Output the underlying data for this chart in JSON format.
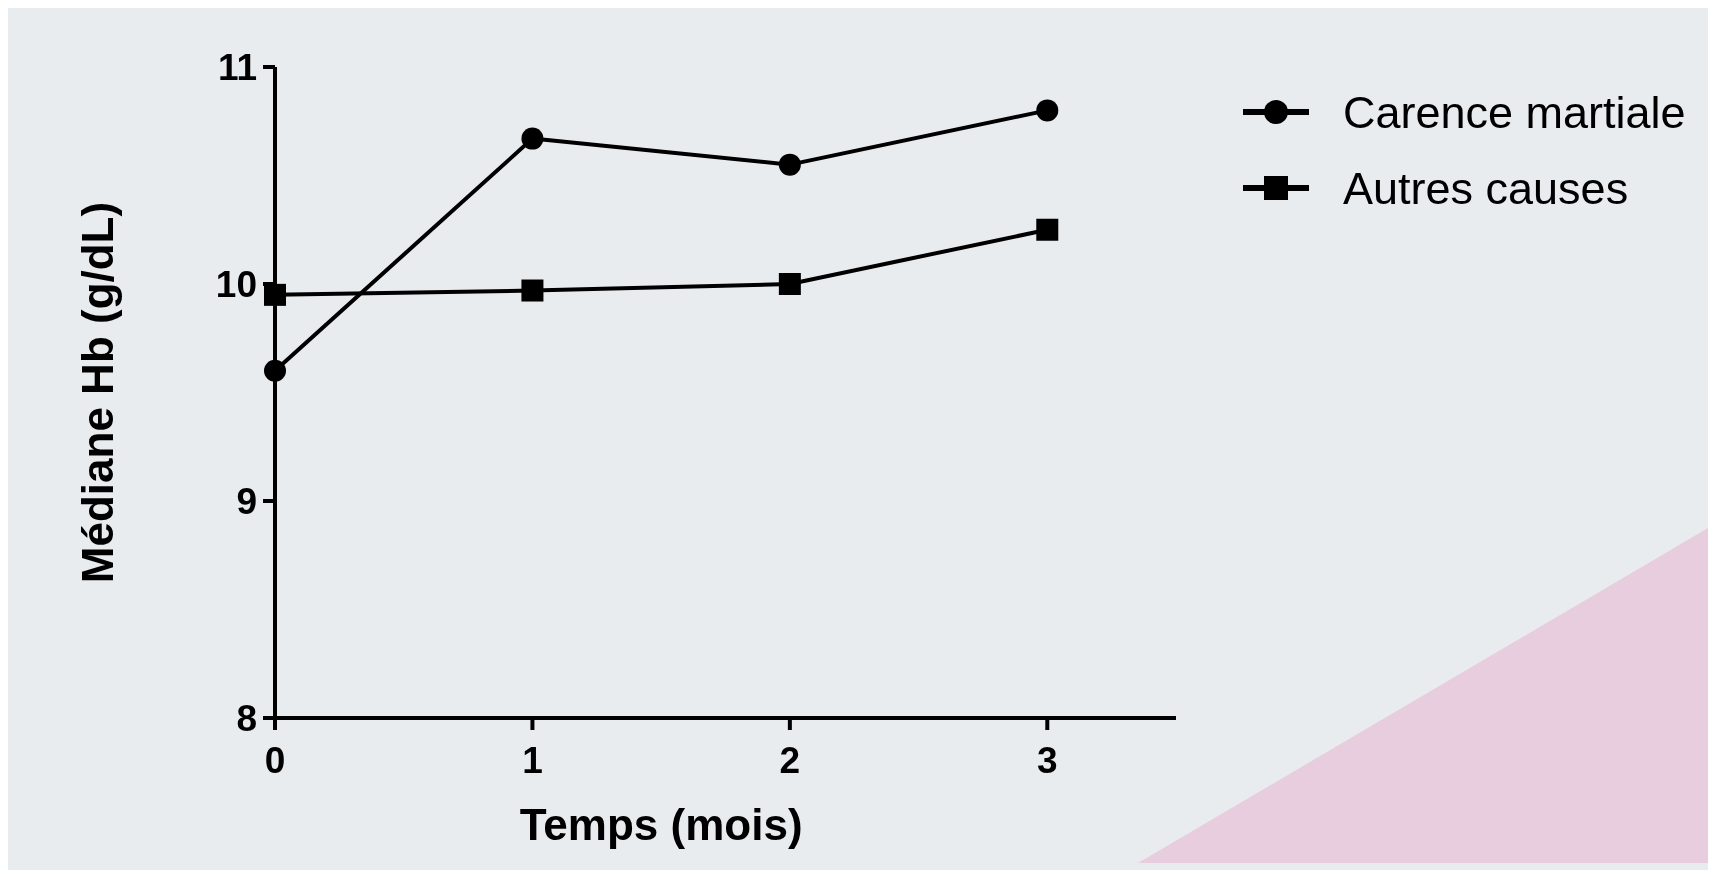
{
  "chart_data": {
    "type": "line",
    "xlabel": "Temps (mois)",
    "ylabel": "Médiane Hb (g/dL)",
    "x": [
      0,
      1,
      2,
      3
    ],
    "xlim": [
      0,
      3.5
    ],
    "xticks": [
      0,
      1,
      2,
      3
    ],
    "ylim": [
      8,
      11
    ],
    "yticks": [
      8,
      9,
      10,
      11
    ],
    "series": [
      {
        "name": "Carence martiale",
        "color": "#000000",
        "marker": "circle",
        "values": [
          9.6,
          10.67,
          10.55,
          10.8
        ]
      },
      {
        "name": "Autres causes",
        "color": "#000000",
        "marker": "square",
        "values": [
          9.95,
          9.97,
          10.0,
          10.25
        ]
      }
    ],
    "grid": false,
    "legend": "right",
    "line_style": "solid"
  }
}
